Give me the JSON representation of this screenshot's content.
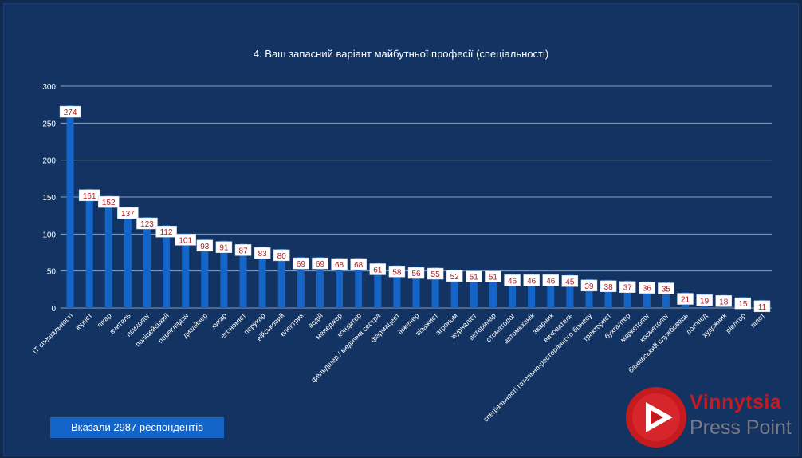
{
  "title": "4. Ваш запасний варіант майбутньої професії (спеціальності)",
  "footer": {
    "respondents": "Вказали 2987 респондентів"
  },
  "logo": {
    "line1": "Vinnytsia",
    "line2": "Press Point"
  },
  "colors": {
    "background": "#133462",
    "bar": "#1565c9",
    "grid": "#9fb2cf",
    "logo_red": "#c51a1f"
  },
  "chart_data": {
    "type": "bar",
    "title": "4. Ваш запасний варіант майбутньої професії (спеціальності)",
    "xlabel": "",
    "ylabel": "",
    "ylim": [
      0,
      300
    ],
    "yticks": [
      0,
      50,
      100,
      150,
      200,
      250,
      300
    ],
    "grid": true,
    "categories": [
      "ІТ спеціальності",
      "юрист",
      "лікар",
      "вчитель",
      "психолог",
      "поліцейський",
      "перекладач",
      "дизайнер",
      "кухар",
      "економіст",
      "перукар",
      "військовий",
      "електрик",
      "водій",
      "менеджер",
      "кондитер",
      "фельдшер / медична сестра",
      "фармацевт",
      "інженер",
      "візажист",
      "агроном",
      "журналіст",
      "ветеринар",
      "стоматолог",
      "автомеханік",
      "зварник",
      "вихователь",
      "спеціальності готельно-ресторанного бізнесу",
      "тракторист",
      "бухгалтер",
      "маркетолог",
      "косметолог",
      "банківський службовець",
      "логопед",
      "художник",
      "ріелтор",
      "пілот"
    ],
    "values": [
      274,
      161,
      152,
      137,
      123,
      112,
      101,
      93,
      91,
      87,
      83,
      80,
      69,
      69,
      68,
      68,
      61,
      58,
      56,
      55,
      52,
      51,
      51,
      46,
      46,
      46,
      45,
      39,
      38,
      37,
      36,
      35,
      21,
      19,
      18,
      15,
      11
    ]
  }
}
